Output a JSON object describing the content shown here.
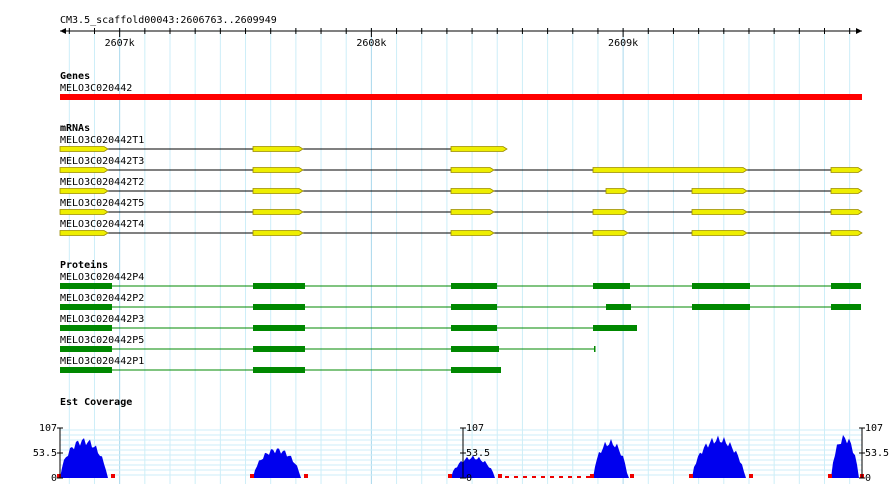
{
  "ruler": {
    "location": "CM3.5_scaffold00043:2606763..2609949",
    "ticks": [
      "2607k",
      "2608k",
      "2609k"
    ]
  },
  "tracks": {
    "genes": {
      "title": "Genes",
      "features": [
        "MELO3C020442"
      ]
    },
    "mrnas": {
      "title": "mRNAs",
      "features": [
        "MELO3C020442T1",
        "MELO3C020442T3",
        "MELO3C020442T2",
        "MELO3C020442T5",
        "MELO3C020442T4"
      ]
    },
    "proteins": {
      "title": "Proteins",
      "features": [
        "MELO3C020442P4",
        "MELO3C020442P2",
        "MELO3C020442P3",
        "MELO3C020442P5",
        "MELO3C020442P1"
      ]
    },
    "est_coverage": {
      "title": "Est Coverage",
      "axis_labels": [
        "107",
        "53.5",
        "0"
      ]
    }
  }
}
